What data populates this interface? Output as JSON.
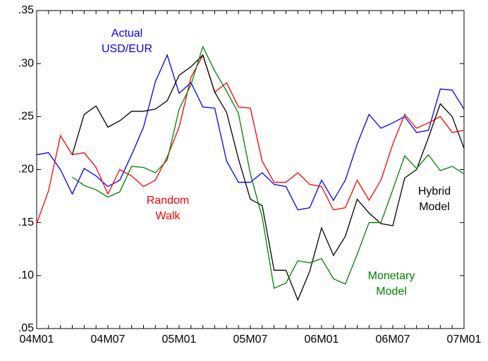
{
  "chart_data": {
    "type": "line",
    "categories": [
      "04M01",
      null,
      null,
      null,
      null,
      null,
      "04M07",
      null,
      null,
      null,
      null,
      null,
      "05M01",
      null,
      null,
      null,
      null,
      null,
      "05M07",
      null,
      null,
      null,
      null,
      null,
      "06M01",
      null,
      null,
      null,
      null,
      null,
      "06M07",
      null,
      null,
      null,
      null,
      null,
      "07M01"
    ],
    "series": [
      {
        "name": "Actual USD/EUR",
        "color": "#0000ff",
        "values": [
          0.214,
          0.216,
          0.2,
          0.177,
          0.201,
          0.194,
          0.184,
          0.19,
          0.214,
          0.24,
          0.283,
          0.308,
          0.272,
          0.282,
          0.259,
          0.258,
          0.208,
          0.188,
          0.188,
          0.197,
          0.186,
          0.184,
          0.162,
          0.164,
          0.19,
          0.171,
          0.19,
          0.224,
          0.252,
          0.239,
          0.244,
          0.25,
          0.235,
          0.237,
          0.276,
          0.275,
          0.257
        ]
      },
      {
        "name": "Random Walk",
        "color": "#ff0000",
        "values": [
          0.149,
          0.18,
          0.232,
          0.214,
          0.216,
          0.202,
          0.177,
          0.2,
          0.194,
          0.184,
          0.19,
          0.212,
          0.24,
          0.287,
          0.308,
          0.273,
          0.282,
          0.259,
          0.258,
          0.208,
          0.188,
          0.188,
          0.197,
          0.186,
          0.184,
          0.162,
          0.164,
          0.19,
          0.171,
          0.19,
          0.224,
          0.252,
          0.239,
          0.244,
          0.25,
          0.235,
          0.237
        ]
      },
      {
        "name": "Hybrid Model",
        "color": "#000000",
        "values": [
          null,
          null,
          null,
          0.214,
          0.252,
          0.26,
          0.24,
          0.246,
          0.255,
          0.255,
          0.257,
          0.265,
          0.289,
          0.297,
          0.308,
          0.273,
          0.254,
          0.21,
          0.172,
          0.166,
          0.105,
          0.105,
          0.077,
          0.104,
          0.145,
          0.119,
          0.137,
          0.172,
          0.159,
          0.149,
          0.147,
          0.192,
          0.2,
          0.23,
          0.262,
          0.25,
          0.22
        ]
      },
      {
        "name": "Monetary Model",
        "color": "#008000",
        "values": [
          null,
          null,
          null,
          0.193,
          0.185,
          0.181,
          0.174,
          0.179,
          0.203,
          0.202,
          0.197,
          0.209,
          0.257,
          0.28,
          0.316,
          0.293,
          0.274,
          0.253,
          0.196,
          0.155,
          0.088,
          0.093,
          0.114,
          0.112,
          0.116,
          0.097,
          0.092,
          0.12,
          0.15,
          0.15,
          0.181,
          0.213,
          0.201,
          0.214,
          0.199,
          0.203,
          0.196
        ]
      }
    ],
    "annotations": [
      {
        "lines": [
          "Actual",
          "USD/EUR"
        ],
        "color": "#0000ff"
      },
      {
        "lines": [
          "Random",
          "Walk"
        ],
        "color": "#ff0000"
      },
      {
        "lines": [
          "Hybrid",
          "Model"
        ],
        "color": "#000000"
      },
      {
        "lines": [
          "Monetary",
          "Model"
        ],
        "color": "#008000"
      }
    ],
    "ylim": [
      0.05,
      0.35
    ],
    "yticks": [
      {
        "value": 0.05,
        "label": ".05"
      },
      {
        "value": 0.1,
        "label": ".10"
      },
      {
        "value": 0.15,
        "label": ".15"
      },
      {
        "value": 0.2,
        "label": ".20"
      },
      {
        "value": 0.25,
        "label": ".25"
      },
      {
        "value": 0.3,
        "label": ".30"
      },
      {
        "value": 0.35,
        "label": ".35"
      }
    ],
    "grid": false
  }
}
